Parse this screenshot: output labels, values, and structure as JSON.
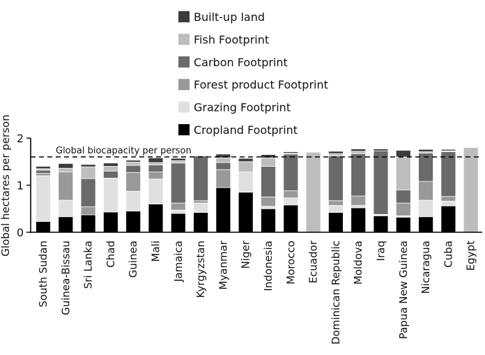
{
  "chart_data": {
    "type": "bar",
    "stacked": true,
    "ylabel": "Global hectares per person",
    "ylim": [
      0,
      2.0
    ],
    "yticks": [
      0,
      1,
      2
    ],
    "reference_line": {
      "label": "Global biocapacity per person",
      "value": 1.6
    },
    "legend_position": "top-center",
    "categories": [
      "South Sudan",
      "Guinea-Bissau",
      "Sri Lanka",
      "Chad",
      "Guinea",
      "Mali",
      "Jamaica",
      "Kyrgyzstan",
      "Myanmar",
      "Niger",
      "Indonesia",
      "Morocco",
      "Ecuador",
      "Dominican Republic",
      "Moldova",
      "Iraq",
      "Papua New Guinea",
      "Nicaragua",
      "Cuba",
      "Egypt"
    ],
    "series": [
      {
        "name": "Cropland Footprint",
        "color": "#000000",
        "values": [
          0.23,
          0.33,
          0.37,
          0.43,
          0.45,
          0.6,
          0.4,
          0.42,
          0.95,
          0.85,
          0.5,
          0.58,
          0.0,
          0.42,
          0.52,
          0.35,
          0.32,
          0.33,
          0.56,
          0.0
        ]
      },
      {
        "name": "Grazing Footprint",
        "color": "#e0e0e0",
        "values": [
          0.97,
          0.35,
          0.0,
          0.72,
          0.42,
          0.53,
          0.07,
          0.2,
          0.0,
          0.43,
          0.05,
          0.15,
          0.0,
          0.15,
          0.05,
          0.03,
          0.03,
          0.35,
          0.1,
          0.0
        ]
      },
      {
        "name": "Forest product Footprint",
        "color": "#999999",
        "values": [
          0.05,
          0.6,
          0.17,
          0.0,
          0.4,
          0.15,
          0.15,
          0.05,
          0.38,
          0.0,
          0.2,
          0.15,
          0.0,
          0.1,
          0.2,
          0.0,
          0.27,
          0.4,
          0.1,
          0.0
        ]
      },
      {
        "name": "Carbon Footprint",
        "color": "#6a6a6a",
        "values": [
          0.07,
          0.0,
          0.6,
          0.15,
          0.15,
          0.15,
          0.85,
          0.95,
          0.15,
          0.0,
          0.65,
          0.78,
          0.0,
          0.95,
          0.9,
          1.35,
          0.28,
          0.6,
          0.95,
          0.0
        ]
      },
      {
        "name": "Fish Footprint",
        "color": "#bdbdbd",
        "values": [
          0.03,
          0.08,
          0.25,
          0.1,
          0.07,
          0.05,
          0.05,
          0.02,
          0.1,
          0.22,
          0.18,
          0.02,
          1.7,
          0.05,
          0.05,
          0.0,
          0.7,
          0.03,
          0.02,
          1.8
        ]
      },
      {
        "name": "Built-up land",
        "color": "#3c3c3c",
        "values": [
          0.05,
          0.1,
          0.05,
          0.07,
          0.04,
          0.1,
          0.05,
          0.01,
          0.08,
          0.07,
          0.07,
          0.03,
          0.0,
          0.05,
          0.05,
          0.04,
          0.14,
          0.05,
          0.03,
          0.0
        ]
      }
    ]
  }
}
